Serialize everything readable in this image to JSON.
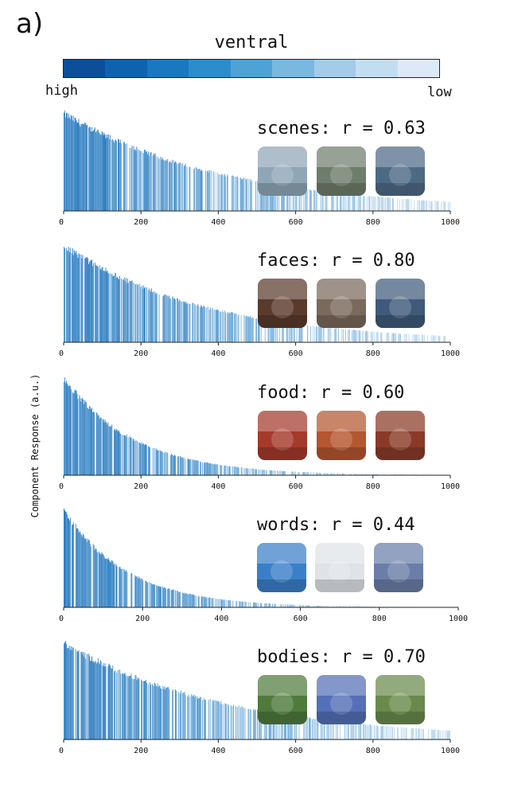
{
  "panel_label": "a)",
  "colorbar": {
    "title": "ventral",
    "high_label": "high",
    "low_label": "low",
    "colors": [
      "#0b4f9a",
      "#0e63b0",
      "#1878c0",
      "#2b8dcc",
      "#4ea3d6",
      "#79b9df",
      "#a2cce8",
      "#c3ddf0",
      "#dde9f6"
    ]
  },
  "y_axis_label": "Component Response (a.u.)",
  "chart_data": [
    {
      "type": "bar",
      "title": "scenes: r = 0.63",
      "xlim": [
        0,
        1000
      ],
      "x_ticks": [
        "0",
        "200",
        "400",
        "600",
        "800",
        "1000"
      ],
      "profile_decay": 420,
      "ordering_r": 0.63,
      "images": [
        "rocky-landscape-photo",
        "empty-room-photo",
        "city-buildings-photo"
      ]
    },
    {
      "type": "bar",
      "title": "faces: r = 0.80",
      "xlim": [
        0,
        1000
      ],
      "x_ticks": [
        "0",
        "200",
        "400",
        "600",
        "800",
        "1000"
      ],
      "profile_decay": 360,
      "ordering_r": 0.8,
      "images": [
        "father-and-son-photo",
        "man-on-phone-photo",
        "smiling-boy-photo"
      ]
    },
    {
      "type": "bar",
      "title": "food: r = 0.60",
      "xlim": [
        0,
        1000
      ],
      "x_ticks": [
        "0",
        "200",
        "400",
        "600",
        "800",
        "1000"
      ],
      "profile_decay": 180,
      "ordering_r": 0.6,
      "images": [
        "vegetables-photo",
        "pizza-photo",
        "pizza-slice-photo"
      ]
    },
    {
      "type": "bar",
      "title": "words: r = 0.44",
      "xlim": [
        0,
        1000
      ],
      "x_ticks": [
        "0",
        "200",
        "400",
        "600",
        "800",
        "1000"
      ],
      "profile_decay": 160,
      "ordering_r": 0.44,
      "images": [
        "stop-sign-photo",
        "street-sign-photo",
        "protest-signs-photo"
      ]
    },
    {
      "type": "bar",
      "title": "bodies: r = 0.70",
      "xlim": [
        0,
        1000
      ],
      "x_ticks": [
        "0",
        "200",
        "400",
        "600",
        "800",
        "1000"
      ],
      "profile_decay": 420,
      "ordering_r": 0.7,
      "images": [
        "soccer-players-photo",
        "snowboarder-photo",
        "football-players-photo"
      ]
    }
  ]
}
